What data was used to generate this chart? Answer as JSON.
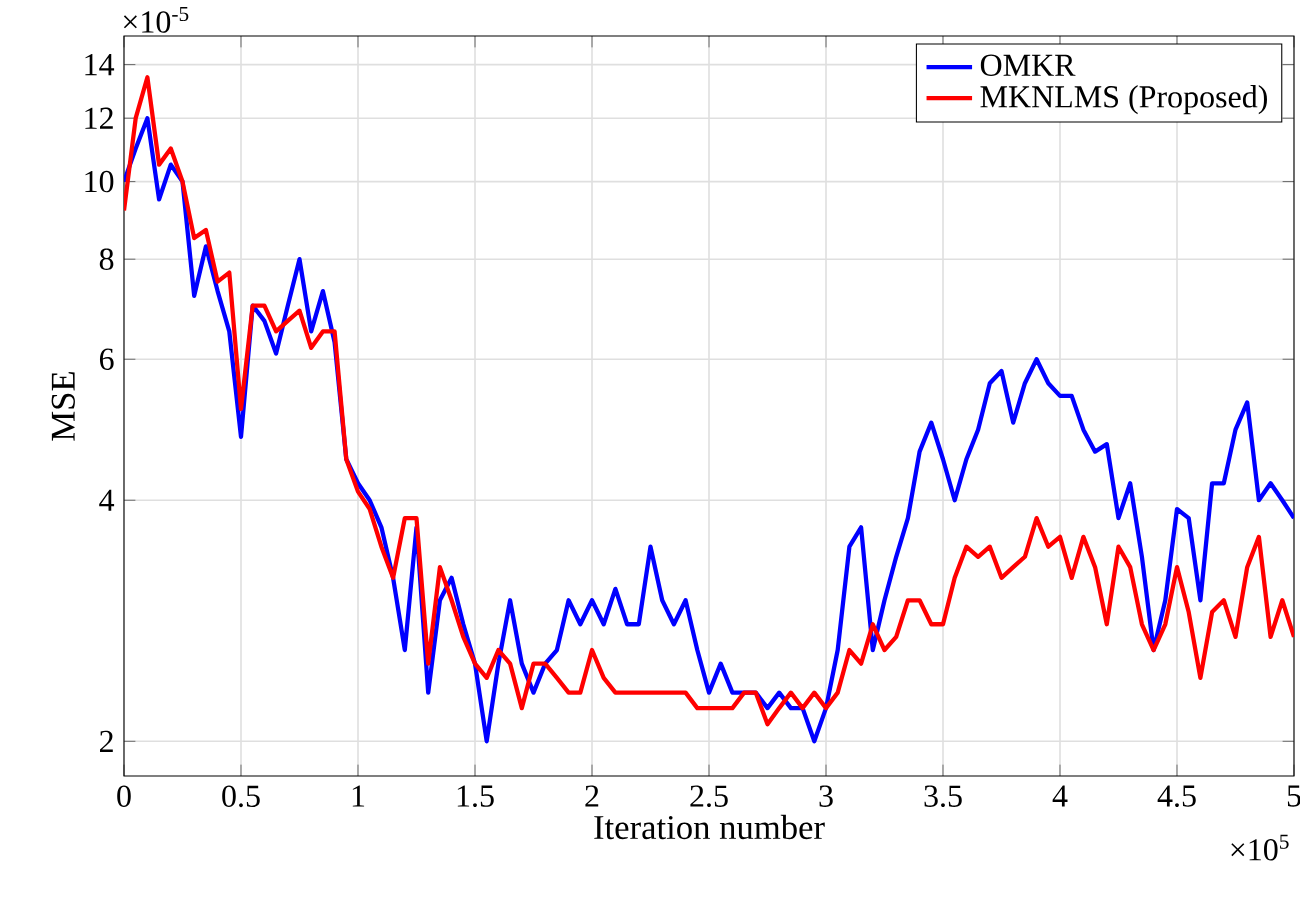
{
  "chart_data": {
    "type": "line",
    "xlabel": "Iteration number",
    "ylabel": "MSE",
    "log": "y",
    "grid": true,
    "legend": "top right",
    "line_style": "solid",
    "annotations": [
      "×10$^{-5}$",
      "×10$^{5}$"
    ],
    "xlim": [
      0,
      5
    ],
    "ylim": [
      1.81,
      15.2
    ],
    "xticks": [
      0,
      0.5,
      1,
      1.5,
      2,
      2.5,
      3,
      3.5,
      4,
      4.5,
      5
    ],
    "yticks": [
      2,
      4,
      6,
      8,
      10,
      12,
      14
    ],
    "x": [
      0,
      0.05,
      0.1,
      0.15,
      0.2,
      0.25,
      0.3,
      0.35,
      0.4,
      0.45,
      0.5,
      0.55,
      0.6,
      0.65,
      0.7,
      0.75,
      0.8,
      0.85,
      0.9,
      0.95,
      1,
      1.05,
      1.1,
      1.15,
      1.2,
      1.25,
      1.3,
      1.35,
      1.4,
      1.45,
      1.5,
      1.55,
      1.6,
      1.65,
      1.7,
      1.75,
      1.8,
      1.85,
      1.9,
      1.95,
      2,
      2.05,
      2.1,
      2.15,
      2.2,
      2.25,
      2.3,
      2.35,
      2.4,
      2.45,
      2.5,
      2.55,
      2.6,
      2.65,
      2.7,
      2.75,
      2.8,
      2.85,
      2.9,
      2.95,
      3,
      3.05,
      3.1,
      3.15,
      3.2,
      3.25,
      3.3,
      3.35,
      3.4,
      3.45,
      3.5,
      3.55,
      3.6,
      3.65,
      3.7,
      3.75,
      3.8,
      3.85,
      3.9,
      3.95,
      4,
      4.05,
      4.1,
      4.15,
      4.2,
      4.25,
      4.3,
      4.35,
      4.4,
      4.45,
      4.5,
      4.55,
      4.6,
      4.65,
      4.7,
      4.75,
      4.8,
      4.85,
      4.9,
      4.95,
      5
    ],
    "series": [
      {
        "name": "OMKR",
        "color": "#0000ff",
        "values": [
          10,
          11,
          12,
          9.5,
          10.5,
          10,
          7.2,
          8.3,
          7.3,
          6.5,
          4.8,
          7,
          6.7,
          6.1,
          7,
          8,
          6.5,
          7.3,
          6.3,
          4.5,
          4.2,
          4,
          3.7,
          3.2,
          2.6,
          3.7,
          2.3,
          3,
          3.2,
          2.8,
          2.5,
          2,
          2.5,
          3,
          2.5,
          2.3,
          2.5,
          2.6,
          3,
          2.8,
          3,
          2.8,
          3.1,
          2.8,
          2.8,
          3.5,
          3,
          2.8,
          3,
          2.6,
          2.3,
          2.5,
          2.3,
          2.3,
          2.3,
          2.2,
          2.3,
          2.2,
          2.2,
          2,
          2.2,
          2.6,
          3.5,
          3.7,
          2.6,
          3,
          3.4,
          3.8,
          4.6,
          5,
          4.5,
          4,
          4.5,
          4.9,
          5.6,
          5.8,
          5,
          5.6,
          6,
          5.6,
          5.4,
          5.4,
          4.9,
          4.6,
          4.7,
          3.8,
          4.2,
          3.4,
          2.6,
          3,
          3.9,
          3.8,
          3,
          4.2,
          4.2,
          4.9,
          5.3,
          4,
          4.2,
          4,
          3.8
        ]
      },
      {
        "name": "MKNLMS (Proposed)",
        "color": "#ff0000",
        "values": [
          9.2,
          12,
          13.5,
          10.5,
          11,
          10,
          8.5,
          8.7,
          7.5,
          7.7,
          5.2,
          7,
          7,
          6.5,
          6.7,
          6.9,
          6.2,
          6.5,
          6.5,
          4.5,
          4.1,
          3.9,
          3.5,
          3.2,
          3.8,
          3.8,
          2.5,
          3.3,
          3,
          2.7,
          2.5,
          2.4,
          2.6,
          2.5,
          2.2,
          2.5,
          2.5,
          2.4,
          2.3,
          2.3,
          2.6,
          2.4,
          2.3,
          2.3,
          2.3,
          2.3,
          2.3,
          2.3,
          2.3,
          2.2,
          2.2,
          2.2,
          2.2,
          2.3,
          2.3,
          2.1,
          2.2,
          2.3,
          2.2,
          2.3,
          2.2,
          2.3,
          2.6,
          2.5,
          2.8,
          2.6,
          2.7,
          3,
          3,
          2.8,
          2.8,
          3.2,
          3.5,
          3.4,
          3.5,
          3.2,
          3.3,
          3.4,
          3.8,
          3.5,
          3.6,
          3.2,
          3.6,
          3.3,
          2.8,
          3.5,
          3.3,
          2.8,
          2.6,
          2.8,
          3.3,
          2.9,
          2.4,
          2.9,
          3,
          2.7,
          3.3,
          3.6,
          2.7,
          3,
          2.7
        ]
      }
    ]
  }
}
